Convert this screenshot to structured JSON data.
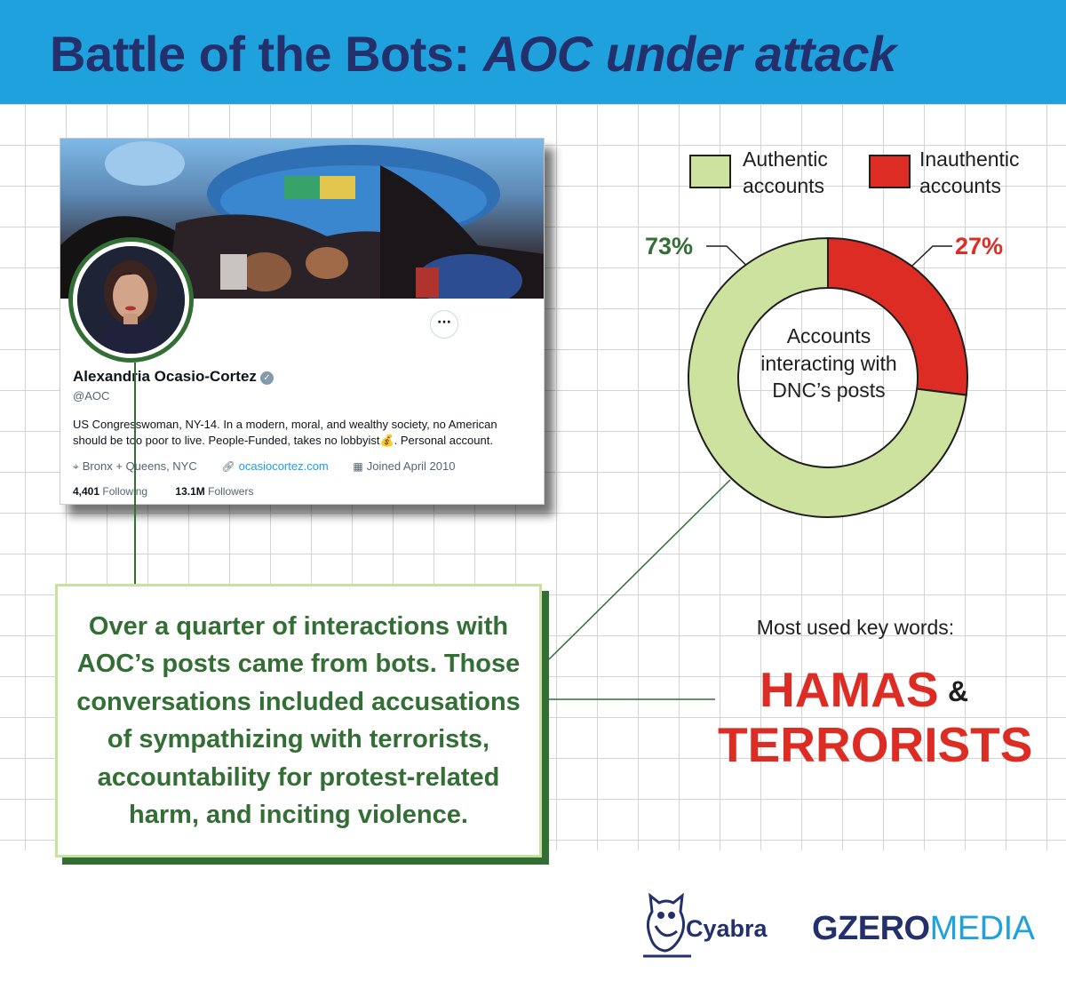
{
  "header": {
    "title_part1": "Battle of the Bots: ",
    "title_part2": "AOC under attack",
    "background_color": "#1ea1dd",
    "text_color": "#23306b"
  },
  "profile_card": {
    "name": "Alexandria Ocasio-Cortez",
    "verified_icon": "verified-badge-icon",
    "handle": "@AOC",
    "bio_line1": "US Congresswoman, NY-14. In a modern, moral, and wealthy society, no American",
    "bio_line2_a": "should be too poor to live. People-Funded, takes no lobbyist",
    "bio_emoji": "💰",
    "bio_line2_b": ". Personal account.",
    "location": "Bronx + Queens, NYC",
    "website": "ocasiocortez.com",
    "joined": "Joined April 2010",
    "following_count": "4,401",
    "following_label": "Following",
    "followers_count": "13.1M",
    "followers_label": "Followers",
    "more_button": "···"
  },
  "callout": {
    "text": "Over a quarter of interactions with AOC’s posts came from bots. Those conversations included accusations of sympathizing with terrorists, accountability for protest-related harm, and inciting violence.",
    "text_color": "#336e35",
    "border_color": "#c7e19e"
  },
  "chart_data": {
    "type": "pie",
    "variant": "donut",
    "title": "",
    "center_label": "Accounts interacting with DNC’s posts",
    "legend_placement": "top-right",
    "slices": [
      {
        "name": "Inauthentic accounts",
        "value": 27,
        "label": "27%",
        "color": "#dd2c24"
      },
      {
        "name": "Authentic accounts",
        "value": 73,
        "label": "73%",
        "color": "#cde29f"
      }
    ],
    "legend": [
      {
        "line1": "Authentic",
        "line2": "accounts",
        "color": "#cde29f"
      },
      {
        "line1": "Inauthentic",
        "line2": "accounts",
        "color": "#dd2c24"
      }
    ],
    "label_colors": {
      "authentic": "#336e35",
      "inauthentic": "#dd2c24"
    }
  },
  "keywords": {
    "title": "Most used key words:",
    "word1": "HAMAS",
    "ampersand": "&",
    "word2": "TERRORISTS",
    "color": "#dd2c24"
  },
  "logos": {
    "cyabra": "Cyabra",
    "cyabra_icon": "owl-logo-icon",
    "gzero_part1": "GZERO",
    "gzero_part2": "MEDIA",
    "gzero_color1": "#23306b",
    "gzero_color2": "#1ea1dd"
  }
}
